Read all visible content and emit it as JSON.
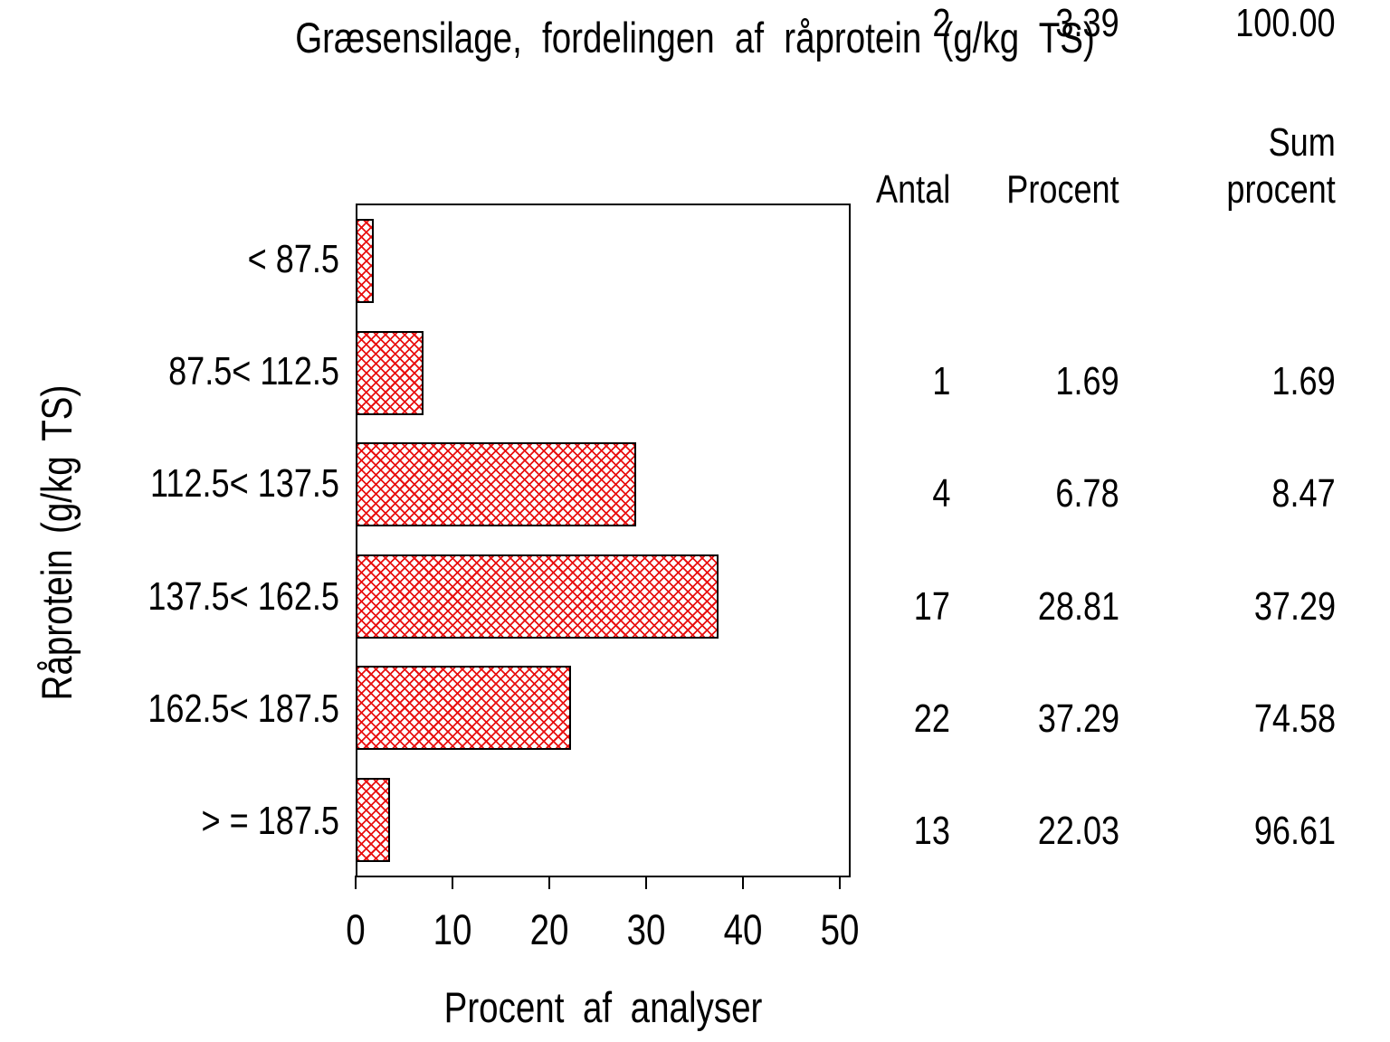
{
  "chart_data": {
    "type": "bar",
    "orientation": "horizontal",
    "title": "Græsensilage, fordelingen af råprotein (g/kg TS)",
    "xlabel": "Procent af analyser",
    "ylabel": "Råprotein (g/kg TS)",
    "categories": [
      "< 87.5",
      "87.5< 112.5",
      "112.5< 137.5",
      "137.5< 162.5",
      "162.5< 187.5",
      "> = 187.5"
    ],
    "values": [
      1.69,
      6.78,
      28.81,
      37.29,
      22.03,
      3.39
    ],
    "xlim": [
      0,
      50
    ],
    "xticks": [
      0,
      10,
      20,
      30,
      40,
      50
    ],
    "grid": "off",
    "bar_pattern": "red-crosshatch",
    "bar_color": "#e81010",
    "frame_color": "#000000"
  },
  "table": {
    "header": {
      "antal": "Antal",
      "procent": "Procent",
      "sum_line1": "Sum",
      "sum_line2": "procent"
    },
    "rows": [
      {
        "antal": "1",
        "procent": "1.69",
        "sum": "1.69"
      },
      {
        "antal": "4",
        "procent": "6.78",
        "sum": "8.47"
      },
      {
        "antal": "17",
        "procent": "28.81",
        "sum": "37.29"
      },
      {
        "antal": "22",
        "procent": "37.29",
        "sum": "74.58"
      },
      {
        "antal": "13",
        "procent": "22.03",
        "sum": "96.61"
      },
      {
        "antal": "2",
        "procent": "3.39",
        "sum": "100.00"
      }
    ]
  }
}
